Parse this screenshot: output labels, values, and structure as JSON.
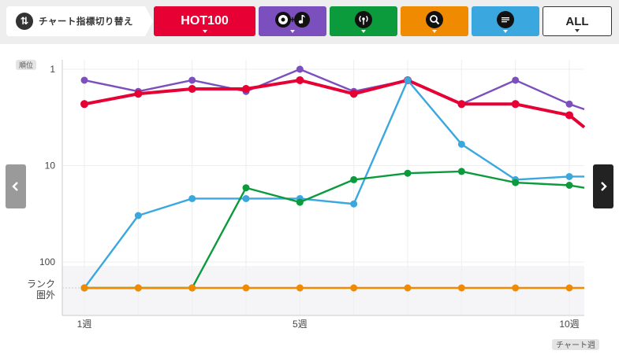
{
  "toolbar": {
    "switch_label": "チャート指標切り替え",
    "tabs": [
      {
        "id": "hot100",
        "label": "HOT100",
        "color": "#e60033",
        "icon": null
      },
      {
        "id": "sales",
        "label": "",
        "color": "#7b4fbe",
        "icon": "cd-plus-note-icon"
      },
      {
        "id": "streaming",
        "label": "",
        "color": "#0b9a3c",
        "icon": "streaming-signal-icon"
      },
      {
        "id": "lookup",
        "label": "",
        "color": "#f08a00",
        "icon": "search-icon"
      },
      {
        "id": "twitter",
        "label": "",
        "color": "#3aa8df",
        "icon": "artist-tweet-icon"
      },
      {
        "id": "all",
        "label": "ALL",
        "color": "#ffffff",
        "icon": null
      }
    ]
  },
  "chart_data": {
    "type": "line",
    "yscale": "log",
    "ylabel": "順位",
    "xlabel": "チャート週",
    "y_tick_labels": [
      {
        "value": 1,
        "label": "1"
      },
      {
        "value": 10,
        "label": "10"
      },
      {
        "value": 100,
        "label": "100"
      }
    ],
    "out_of_rank_label": [
      "ランク",
      "圏外"
    ],
    "x": [
      1,
      2,
      3,
      4,
      5,
      6,
      7,
      8,
      9,
      10
    ],
    "x_tick_labels": [
      {
        "value": 1,
        "label": "1週"
      },
      {
        "value": 5,
        "label": "5週"
      },
      {
        "value": 10,
        "label": "10週"
      }
    ],
    "series": [
      {
        "color": "#7b4fbe",
        "values": [
          1.3,
          1.7,
          1.3,
          1.7,
          1,
          1.7,
          1.3,
          2.3,
          1.3,
          2.3
        ],
        "trail": 2.6
      },
      {
        "color": "#e60033",
        "values": [
          2.3,
          1.8,
          1.6,
          1.6,
          1.3,
          1.8,
          1.3,
          2.3,
          2.3,
          3
        ],
        "trail": 4
      },
      {
        "color": "#3aa8df",
        "values": [
          "out",
          33,
          22,
          22,
          22,
          25,
          1.3,
          6,
          14,
          13
        ],
        "trail": 13
      },
      {
        "color": "#0b9a3c",
        "values": [
          "out",
          "out",
          "out",
          17,
          24,
          14,
          12,
          11.5,
          15,
          16
        ],
        "trail": 17
      },
      {
        "color": "#f08a00",
        "values": [
          "out",
          "out",
          "out",
          "out",
          "out",
          "out",
          "out",
          "out",
          "out",
          "out"
        ],
        "trail": "out"
      }
    ]
  }
}
